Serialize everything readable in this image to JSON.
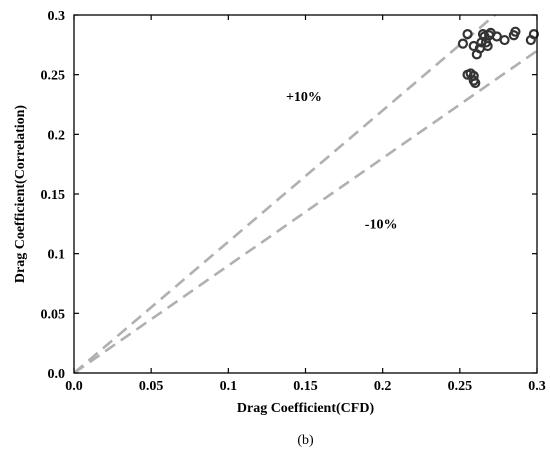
{
  "chart_data": {
    "type": "scatter",
    "title": "",
    "xlabel": "Drag Coefficient(CFD)",
    "ylabel": "Drag Coefficient(Correlation)",
    "xlim": [
      0,
      0.3
    ],
    "ylim": [
      0,
      0.3
    ],
    "x_ticks": [
      "0.0",
      "0.05",
      "0.1",
      "0.15",
      "0.2",
      "0.25",
      "0.3"
    ],
    "y_ticks": [
      "0.0",
      "0.05",
      "0.1",
      "0.15",
      "0.2",
      "0.25",
      "0.3"
    ],
    "grid": false,
    "reference_lines": [
      {
        "label": "+10%",
        "slope": 1.1,
        "color": "#b0b0b0",
        "dash": true
      },
      {
        "label": "-10%",
        "slope": 0.9,
        "color": "#b0b0b0",
        "dash": true
      }
    ],
    "annotations": [
      {
        "text": "+10%",
        "x": 0.149,
        "y": 0.228
      },
      {
        "text": "-10%",
        "x": 0.199,
        "y": 0.121
      }
    ],
    "series": [
      {
        "marker": "open-circle",
        "color": "#333333",
        "points": [
          {
            "x": 0.252,
            "y": 0.276
          },
          {
            "x": 0.255,
            "y": 0.284
          },
          {
            "x": 0.255,
            "y": 0.25
          },
          {
            "x": 0.257,
            "y": 0.251
          },
          {
            "x": 0.259,
            "y": 0.249
          },
          {
            "x": 0.259,
            "y": 0.245
          },
          {
            "x": 0.26,
            "y": 0.243
          },
          {
            "x": 0.259,
            "y": 0.274
          },
          {
            "x": 0.261,
            "y": 0.267
          },
          {
            "x": 0.263,
            "y": 0.272
          },
          {
            "x": 0.264,
            "y": 0.277
          },
          {
            "x": 0.265,
            "y": 0.284
          },
          {
            "x": 0.266,
            "y": 0.282
          },
          {
            "x": 0.267,
            "y": 0.277
          },
          {
            "x": 0.268,
            "y": 0.274
          },
          {
            "x": 0.269,
            "y": 0.283
          },
          {
            "x": 0.27,
            "y": 0.285
          },
          {
            "x": 0.274,
            "y": 0.282
          },
          {
            "x": 0.279,
            "y": 0.279
          },
          {
            "x": 0.285,
            "y": 0.283
          },
          {
            "x": 0.286,
            "y": 0.286
          },
          {
            "x": 0.296,
            "y": 0.279
          },
          {
            "x": 0.298,
            "y": 0.284
          }
        ]
      }
    ]
  },
  "caption": "(b)"
}
